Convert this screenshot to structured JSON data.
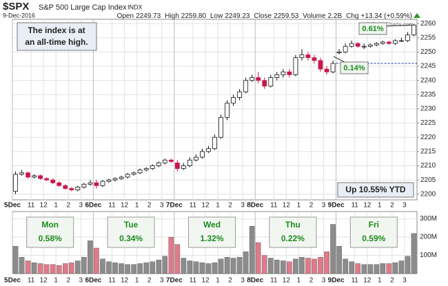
{
  "chart_data": {
    "type": "candlestick",
    "title": "$SPX",
    "subtitle": "S&P 500 Large Cap Index",
    "exchange": "INDX",
    "date": "9-Dec-2016",
    "quote": [
      {
        "label": "Open",
        "value": "2249.73"
      },
      {
        "label": "High",
        "value": "2259.80"
      },
      {
        "label": "Low",
        "value": "2249.23"
      },
      {
        "label": "Close",
        "value": "2259.53"
      },
      {
        "label": "Volume",
        "value": "2.2B"
      },
      {
        "label": "Chg",
        "value": "+13.34 (+0.59%)"
      }
    ],
    "credit": "© StockCharts.com",
    "xlim": [
      0,
      1950
    ],
    "xticks": [
      {
        "value": 0,
        "label": "5Dec"
      },
      {
        "value": 90,
        "label": "11"
      },
      {
        "value": 150,
        "label": "12"
      },
      {
        "value": 210,
        "label": "1"
      },
      {
        "value": 270,
        "label": "2"
      },
      {
        "value": 330,
        "label": "3"
      },
      {
        "value": 390,
        "label": "6Dec"
      },
      {
        "value": 480,
        "label": "11"
      },
      {
        "value": 540,
        "label": "12"
      },
      {
        "value": 600,
        "label": "1"
      },
      {
        "value": 660,
        "label": "2"
      },
      {
        "value": 720,
        "label": "3"
      },
      {
        "value": 780,
        "label": "7Dec"
      },
      {
        "value": 870,
        "label": "11"
      },
      {
        "value": 930,
        "label": "12"
      },
      {
        "value": 990,
        "label": "1"
      },
      {
        "value": 1050,
        "label": "2"
      },
      {
        "value": 1110,
        "label": "3"
      },
      {
        "value": 1170,
        "label": "8Dec"
      },
      {
        "value": 1260,
        "label": "11"
      },
      {
        "value": 1320,
        "label": "12"
      },
      {
        "value": 1380,
        "label": "1"
      },
      {
        "value": 1440,
        "label": "2"
      },
      {
        "value": 1500,
        "label": "3"
      },
      {
        "value": 1560,
        "label": "9Dec"
      },
      {
        "value": 1650,
        "label": "11"
      },
      {
        "value": 1710,
        "label": "12"
      },
      {
        "value": 1770,
        "label": "1"
      },
      {
        "value": 1830,
        "label": "2"
      },
      {
        "value": 1890,
        "label": "3"
      }
    ],
    "ylim": [
      2198,
      2261.5
    ],
    "yticks": [
      2200,
      2205,
      2210,
      2215,
      2220,
      2225,
      2230,
      2235,
      2240,
      2245,
      2250,
      2255,
      2260
    ],
    "volume_ylim": [
      0,
      340
    ],
    "volume_yticks": [
      {
        "value": 100,
        "label": "100M"
      },
      {
        "value": 200,
        "label": "200M"
      },
      {
        "value": 300,
        "label": "300M"
      }
    ],
    "grid": true,
    "up_color": "#ffffff",
    "down_color": "#c8174a",
    "volume_up_color": "#8c8c8c",
    "volume_down_color": "#e07a8a",
    "reference_line": 2246,
    "x": [
      15,
      45,
      75,
      105,
      135,
      165,
      195,
      225,
      255,
      285,
      315,
      345,
      375,
      405,
      435,
      465,
      495,
      525,
      555,
      585,
      615,
      645,
      675,
      705,
      735,
      765,
      795,
      825,
      855,
      885,
      915,
      945,
      975,
      1005,
      1035,
      1065,
      1095,
      1125,
      1155,
      1185,
      1215,
      1245,
      1275,
      1305,
      1335,
      1365,
      1395,
      1425,
      1455,
      1485,
      1515,
      1545,
      1575,
      1605,
      1635,
      1665,
      1695,
      1725,
      1755,
      1785,
      1815,
      1845,
      1875,
      1905,
      1935
    ],
    "open": [
      2201,
      2207,
      2207.5,
      2206,
      2206.5,
      2205.5,
      2205,
      2204,
      2203,
      2202,
      2201.5,
      2202.5,
      2203.5,
      2204,
      2203,
      2204.5,
      2205,
      2205.5,
      2206,
      2207,
      2207.5,
      2208.5,
      2209,
      2210,
      2211,
      2212,
      2211,
      2209,
      2210,
      2212,
      2213,
      2215,
      2216,
      2220,
      2227,
      2232,
      2234,
      2236,
      2240,
      2241,
      2240,
      2238,
      2241,
      2242,
      2243,
      2242,
      2248,
      2249,
      2248,
      2247,
      2244,
      2243,
      2249.7,
      2250,
      2252,
      2253,
      2252,
      2252,
      2252.5,
      2253,
      2253.5,
      2253,
      2254,
      2254,
      2256
    ],
    "high": [
      2208,
      2208.5,
      2208,
      2207,
      2207,
      2206,
      2205.5,
      2204.5,
      2203.5,
      2202.5,
      2203,
      2204,
      2205,
      2205,
      2205,
      2205.5,
      2206,
      2206.5,
      2207.5,
      2208,
      2209,
      2209.5,
      2210.5,
      2211.5,
      2212.5,
      2212.5,
      2212,
      2211,
      2213,
      2214,
      2216,
      2217,
      2221,
      2228,
      2233,
      2235,
      2237,
      2241,
      2242,
      2243,
      2241,
      2242,
      2243,
      2244,
      2244,
      2249,
      2251,
      2250,
      2249,
      2248,
      2245,
      2247,
      2251,
      2253,
      2254,
      2253.5,
      2253,
      2253,
      2253.5,
      2254,
      2254,
      2254.5,
      2255,
      2257,
      2259.8
    ],
    "low": [
      2200,
      2206.5,
      2205.5,
      2205.5,
      2205,
      2204.5,
      2203.5,
      2202.5,
      2201.5,
      2201,
      2201,
      2202,
      2203,
      2202,
      2202.5,
      2204,
      2204.5,
      2205,
      2205.5,
      2206.5,
      2207,
      2208,
      2208.5,
      2209.5,
      2210.5,
      2211,
      2208,
      2208.5,
      2209.5,
      2211.5,
      2212.5,
      2214.5,
      2215.5,
      2219.5,
      2226,
      2231,
      2233,
      2235.5,
      2239.5,
      2239,
      2237,
      2237.5,
      2240,
      2241,
      2241,
      2241.5,
      2247,
      2247,
      2246,
      2243,
      2242,
      2242.5,
      2249.2,
      2249.5,
      2251.5,
      2251.5,
      2251,
      2251.5,
      2252,
      2252.5,
      2252.5,
      2252.5,
      2253.5,
      2253.5,
      2255.5
    ],
    "close": [
      2207,
      2207.5,
      2206,
      2206.5,
      2205.5,
      2205,
      2204,
      2203,
      2202,
      2201.5,
      2202.5,
      2203.5,
      2204,
      2203,
      2204.5,
      2205,
      2205.5,
      2206,
      2207,
      2207.5,
      2208.5,
      2209,
      2210,
      2211,
      2212,
      2211.5,
      2209,
      2210,
      2212,
      2213,
      2215,
      2216,
      2220,
      2227,
      2232,
      2234,
      2236,
      2240,
      2241,
      2240,
      2238,
      2241,
      2242,
      2243,
      2242,
      2248,
      2249,
      2248,
      2247,
      2244,
      2243,
      2246,
      2250,
      2252,
      2253,
      2252,
      2252,
      2252.5,
      2253,
      2253.5,
      2253,
      2254,
      2254,
      2256,
      2259.5
    ],
    "volume": [
      150,
      90,
      70,
      60,
      55,
      50,
      50,
      45,
      55,
      60,
      70,
      90,
      180,
      140,
      80,
      65,
      60,
      55,
      50,
      50,
      55,
      60,
      65,
      75,
      95,
      200,
      160,
      85,
      70,
      65,
      60,
      55,
      60,
      80,
      90,
      85,
      90,
      120,
      260,
      170,
      100,
      85,
      75,
      70,
      65,
      80,
      90,
      85,
      80,
      90,
      120,
      270,
      150,
      80,
      65,
      55,
      50,
      50,
      50,
      55,
      55,
      60,
      70,
      95,
      220
    ],
    "callout_high": [
      "The index is at",
      "an all-time high."
    ],
    "callout_ytd": "Up 10.55% YTD",
    "callout_last": "0.61%",
    "callout_gap": "0.14%",
    "day_changes": [
      {
        "day": "Mon",
        "change": "0.58%"
      },
      {
        "day": "Tue",
        "change": "0.34%"
      },
      {
        "day": "Wed",
        "change": "1.32%"
      },
      {
        "day": "Thu",
        "change": "0.22%"
      },
      {
        "day": "Fri",
        "change": "0.59%"
      }
    ]
  }
}
